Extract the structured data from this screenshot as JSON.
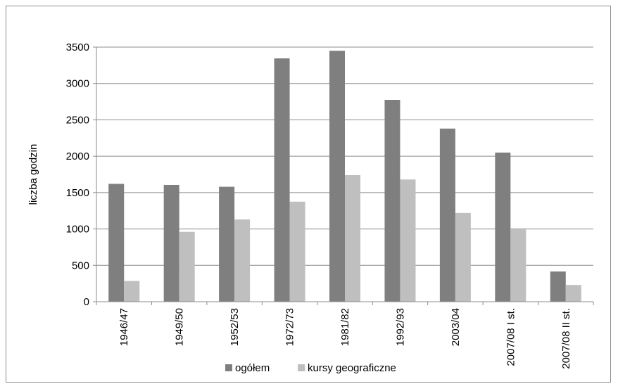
{
  "chart_data": {
    "type": "bar",
    "categories": [
      "1946/47",
      "1949/50",
      "1952/53",
      "1972/73",
      "1981/82",
      "1992/93",
      "2003/04",
      "2007/08 I st.",
      "2007/08 II st."
    ],
    "series": [
      {
        "name": "ogółem",
        "color": "#7f7f7f",
        "values": [
          1620,
          1605,
          1580,
          3345,
          3450,
          2775,
          2380,
          2050,
          415
        ]
      },
      {
        "name": "kursy geograficzne",
        "color": "#bfbfbf",
        "values": [
          285,
          960,
          1130,
          1375,
          1740,
          1680,
          1220,
          1010,
          230
        ]
      }
    ],
    "ylabel": "liczba godzin",
    "ylim": [
      0,
      3500
    ],
    "yticks": [
      0,
      500,
      1000,
      1500,
      2000,
      2500,
      3000,
      3500
    ],
    "grid": true,
    "legend": "bottom"
  }
}
